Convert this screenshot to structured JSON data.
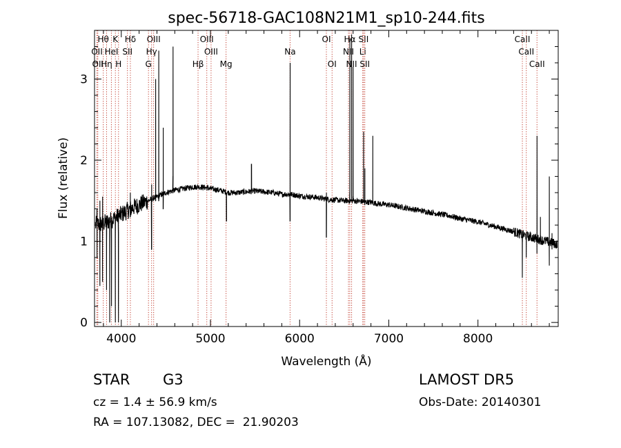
{
  "chart_data": {
    "type": "line",
    "title": "spec-56718-GAC108N21M1_sp10-244.fits",
    "xlabel": "Wavelength (Å)",
    "ylabel": "Flux (relative)",
    "xlim": [
      3700,
      8900
    ],
    "ylim": [
      -0.05,
      3.6
    ],
    "xticks": [
      4000,
      5000,
      6000,
      7000,
      8000
    ],
    "yticks": [
      0,
      1,
      2,
      3
    ],
    "grid": false,
    "spectrum_continuum": [
      [
        3700,
        1.2
      ],
      [
        3800,
        1.22
      ],
      [
        3900,
        1.27
      ],
      [
        4000,
        1.33
      ],
      [
        4100,
        1.4
      ],
      [
        4200,
        1.45
      ],
      [
        4300,
        1.5
      ],
      [
        4400,
        1.55
      ],
      [
        4500,
        1.6
      ],
      [
        4600,
        1.63
      ],
      [
        4700,
        1.65
      ],
      [
        4800,
        1.67
      ],
      [
        4900,
        1.67
      ],
      [
        5000,
        1.65
      ],
      [
        5100,
        1.63
      ],
      [
        5200,
        1.6
      ],
      [
        5300,
        1.6
      ],
      [
        5400,
        1.61
      ],
      [
        5500,
        1.62
      ],
      [
        5600,
        1.61
      ],
      [
        5700,
        1.6
      ],
      [
        5800,
        1.58
      ],
      [
        5900,
        1.58
      ],
      [
        6000,
        1.56
      ],
      [
        6100,
        1.55
      ],
      [
        6200,
        1.54
      ],
      [
        6300,
        1.52
      ],
      [
        6400,
        1.51
      ],
      [
        6500,
        1.5
      ],
      [
        6600,
        1.5
      ],
      [
        6700,
        1.49
      ],
      [
        6800,
        1.48
      ],
      [
        6900,
        1.46
      ],
      [
        7000,
        1.45
      ],
      [
        7100,
        1.43
      ],
      [
        7200,
        1.41
      ],
      [
        7300,
        1.39
      ],
      [
        7400,
        1.37
      ],
      [
        7500,
        1.35
      ],
      [
        7600,
        1.33
      ],
      [
        7700,
        1.31
      ],
      [
        7800,
        1.28
      ],
      [
        7900,
        1.26
      ],
      [
        8000,
        1.24
      ],
      [
        8100,
        1.21
      ],
      [
        8200,
        1.18
      ],
      [
        8300,
        1.15
      ],
      [
        8400,
        1.12
      ],
      [
        8500,
        1.08
      ],
      [
        8600,
        1.05
      ],
      [
        8700,
        1.02
      ],
      [
        8800,
        0.99
      ],
      [
        8900,
        0.96
      ]
    ],
    "spectrum_features": [
      [
        3728,
        1.4,
        0.8,
        1.0
      ],
      [
        3760,
        1.0,
        0.45,
        1.5
      ],
      [
        3790,
        1.3,
        0.5,
        1.55
      ],
      [
        3835,
        1.1,
        0.4,
        1.0
      ],
      [
        3870,
        1.2,
        0.2,
        0.0
      ],
      [
        3890,
        1.0,
        0.3,
        0.2
      ],
      [
        3933,
        1.0,
        0.25,
        0.0
      ],
      [
        3968,
        1.1,
        0.2,
        0.0
      ],
      [
        4101,
        1.3,
        1.3,
        1.6
      ],
      [
        4340,
        0.9,
        0.9,
        1.7
      ],
      [
        4385,
        1.5,
        1.5,
        3.0
      ],
      [
        4420,
        1.5,
        1.5,
        3.35
      ],
      [
        4470,
        1.4,
        1.4,
        2.4
      ],
      [
        4580,
        1.8,
        1.8,
        3.4
      ],
      [
        5180,
        1.25,
        1.25,
        1.55
      ],
      [
        5460,
        1.95,
        1.95,
        1.95
      ],
      [
        5893,
        1.25,
        1.25,
        3.2
      ],
      [
        6300,
        1.05,
        1.05,
        1.6
      ],
      [
        6563,
        1.6,
        1.6,
        3.5
      ],
      [
        6583,
        1.5,
        1.5,
        3.55
      ],
      [
        6600,
        1.55,
        1.55,
        3.15
      ],
      [
        6717,
        1.5,
        1.5,
        2.35
      ],
      [
        6731,
        1.45,
        1.45,
        1.9
      ],
      [
        6820,
        1.5,
        1.5,
        2.3
      ],
      [
        7850,
        1.3,
        1.3,
        1.3
      ],
      [
        8498,
        1.0,
        0.55,
        1.0
      ],
      [
        8542,
        1.05,
        0.8,
        1.0
      ],
      [
        8662,
        1.0,
        0.85,
        2.3
      ],
      [
        8700,
        1.0,
        1.0,
        1.3
      ],
      [
        8800,
        1.0,
        0.7,
        1.8
      ],
      [
        8830,
        1.0,
        0.9,
        1.1
      ]
    ],
    "line_markers": [
      {
        "label": "Hθ",
        "x": 3798,
        "row": 0
      },
      {
        "label": "K",
        "x": 3934,
        "row": 0
      },
      {
        "label": "Hδ",
        "x": 4102,
        "row": 0
      },
      {
        "label": "OIII",
        "x": 4363,
        "row": 0
      },
      {
        "label": "OIII",
        "x": 4959,
        "row": 0
      },
      {
        "label": "OI",
        "x": 6300,
        "row": 0
      },
      {
        "label": "Hα",
        "x": 6563,
        "row": 0
      },
      {
        "label": "SII",
        "x": 6717,
        "row": 0
      },
      {
        "label": "CaII",
        "x": 8498,
        "row": 0
      },
      {
        "label": "OII",
        "x": 3727,
        "row": 1
      },
      {
        "label": "HeI",
        "x": 3889,
        "row": 1
      },
      {
        "label": "SII",
        "x": 4069,
        "row": 1
      },
      {
        "label": "Hγ",
        "x": 4340,
        "row": 1
      },
      {
        "label": "OIII",
        "x": 5007,
        "row": 1
      },
      {
        "label": "Na",
        "x": 5893,
        "row": 1
      },
      {
        "label": "NII",
        "x": 6548,
        "row": 1
      },
      {
        "label": "Li",
        "x": 6708,
        "row": 1
      },
      {
        "label": "CaII",
        "x": 8542,
        "row": 1
      },
      {
        "label": "OII",
        "x": 3737,
        "row": 2
      },
      {
        "label": "Hη",
        "x": 3835,
        "row": 2
      },
      {
        "label": "H",
        "x": 3969,
        "row": 2
      },
      {
        "label": "G",
        "x": 4305,
        "row": 2
      },
      {
        "label": "Hβ",
        "x": 4861,
        "row": 2
      },
      {
        "label": "Mg",
        "x": 5175,
        "row": 2
      },
      {
        "label": "OI",
        "x": 6364,
        "row": 2
      },
      {
        "label": "NII",
        "x": 6583,
        "row": 2
      },
      {
        "label": "SII",
        "x": 6731,
        "row": 2
      },
      {
        "label": "CaII",
        "x": 8662,
        "row": 2
      }
    ]
  },
  "info": {
    "object_class": "STAR",
    "subclass": "G3",
    "redshift": "cz = 1.4 ± 56.9 km/s",
    "coords": "RA = 107.13082, DEC =  21.90203",
    "survey": "LAMOST DR5",
    "obs_date": "Obs-Date: 20140301"
  }
}
